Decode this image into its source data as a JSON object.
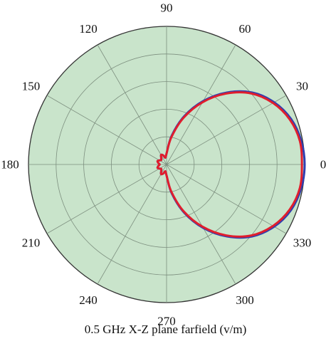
{
  "chart_data": {
    "type": "polar-line",
    "title": "0.5 GHz X-Z plane farfield (v/m)",
    "angle_unit": "degrees",
    "angle_ticks": [
      "0",
      "30",
      "60",
      "90",
      "120",
      "150",
      "180",
      "210",
      "240",
      "270",
      "300",
      "330"
    ],
    "radial_rings": 5,
    "radial_range": [
      0,
      1
    ],
    "grid": true,
    "background_color": "#c9e4cb",
    "series": [
      {
        "color": "#2f3fb0",
        "points": [
          [
            0,
            1.0
          ],
          [
            10,
            0.99
          ],
          [
            20,
            0.96
          ],
          [
            30,
            0.9
          ],
          [
            40,
            0.81
          ],
          [
            50,
            0.68
          ],
          [
            60,
            0.53
          ],
          [
            70,
            0.37
          ],
          [
            80,
            0.21
          ],
          [
            90,
            0.08
          ],
          [
            100,
            0.05
          ],
          [
            110,
            0.07
          ],
          [
            120,
            0.08
          ],
          [
            130,
            0.06
          ],
          [
            140,
            0.05
          ],
          [
            150,
            0.06
          ],
          [
            160,
            0.07
          ],
          [
            170,
            0.06
          ],
          [
            180,
            0.05
          ],
          [
            190,
            0.06
          ],
          [
            200,
            0.07
          ],
          [
            210,
            0.06
          ],
          [
            220,
            0.05
          ],
          [
            230,
            0.06
          ],
          [
            240,
            0.08
          ],
          [
            250,
            0.07
          ],
          [
            260,
            0.05
          ],
          [
            270,
            0.08
          ],
          [
            280,
            0.21
          ],
          [
            290,
            0.37
          ],
          [
            300,
            0.53
          ],
          [
            310,
            0.68
          ],
          [
            320,
            0.81
          ],
          [
            330,
            0.9
          ],
          [
            340,
            0.96
          ],
          [
            350,
            0.99
          ]
        ]
      },
      {
        "color": "#e01e2d",
        "points": [
          [
            0,
            0.98
          ],
          [
            10,
            0.98
          ],
          [
            20,
            0.95
          ],
          [
            30,
            0.89
          ],
          [
            40,
            0.8
          ],
          [
            50,
            0.67
          ],
          [
            60,
            0.52
          ],
          [
            70,
            0.36
          ],
          [
            80,
            0.2
          ],
          [
            90,
            0.08
          ],
          [
            100,
            0.05
          ],
          [
            110,
            0.07
          ],
          [
            120,
            0.08
          ],
          [
            130,
            0.06
          ],
          [
            140,
            0.05
          ],
          [
            150,
            0.06
          ],
          [
            160,
            0.07
          ],
          [
            170,
            0.06
          ],
          [
            180,
            0.05
          ],
          [
            190,
            0.06
          ],
          [
            200,
            0.07
          ],
          [
            210,
            0.06
          ],
          [
            220,
            0.05
          ],
          [
            230,
            0.06
          ],
          [
            240,
            0.08
          ],
          [
            250,
            0.07
          ],
          [
            260,
            0.05
          ],
          [
            270,
            0.08
          ],
          [
            280,
            0.2
          ],
          [
            290,
            0.36
          ],
          [
            300,
            0.52
          ],
          [
            310,
            0.67
          ],
          [
            320,
            0.8
          ],
          [
            330,
            0.89
          ],
          [
            340,
            0.95
          ],
          [
            350,
            0.98
          ]
        ]
      }
    ]
  }
}
